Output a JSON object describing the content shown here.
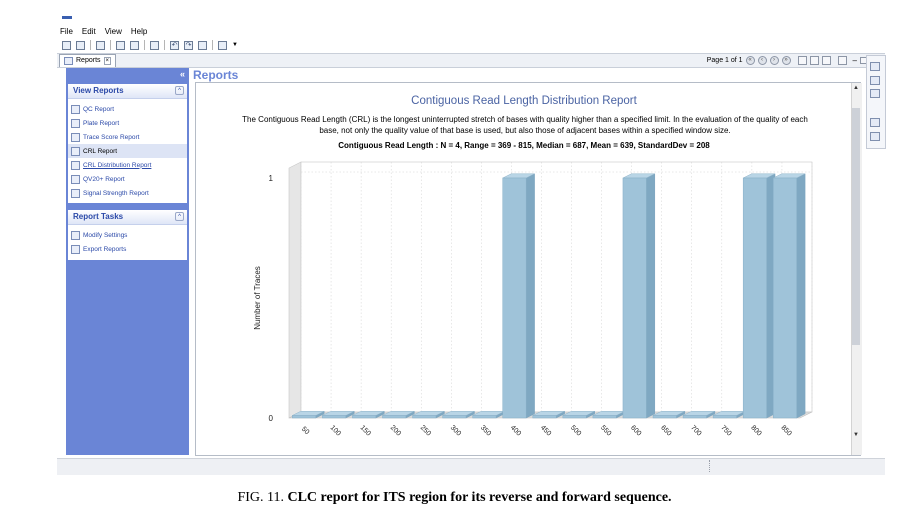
{
  "menu": [
    "File",
    "Edit",
    "View",
    "Help"
  ],
  "tab": {
    "label": "Reports"
  },
  "pager": {
    "text": "Page 1 of 1"
  },
  "sidebar": {
    "view_reports": {
      "title": "View Reports",
      "items": [
        "QC Report",
        "Plate Report",
        "Trace Score Report",
        "CRL Report",
        "CRL Distribution Report",
        "QV20+ Report",
        "Signal Strength Report"
      ]
    },
    "report_tasks": {
      "title": "Report Tasks",
      "items": [
        "Modify Settings",
        "Export Reports"
      ]
    }
  },
  "content": {
    "header": "Reports"
  },
  "chart_data": {
    "type": "bar",
    "title": "Contiguous Read Length Distribution Report",
    "description": "The Contiguous Read Length (CRL) is the longest uninterrupted stretch of bases with quality higher than a specified limit.   In the evaluation of the quality of each base, not only the quality value of that base is used, but also those of adjacent bases within a specified window size.",
    "stats": "Contiguous Read Length : N = 4,  Range = 369 - 815,  Median = 687,  Mean = 639,  StandardDev = 208",
    "ylabel": "Number of Traces",
    "xlabel": "",
    "ylim": [
      0,
      1
    ],
    "yticks": [
      "0",
      "1"
    ],
    "categories": [
      "50",
      "100",
      "150",
      "200",
      "250",
      "300",
      "350",
      "400",
      "450",
      "500",
      "550",
      "600",
      "650",
      "700",
      "750",
      "800",
      "850"
    ],
    "values": [
      0,
      0,
      0,
      0,
      0,
      0,
      0,
      1,
      0,
      0,
      0,
      1,
      0,
      0,
      0,
      1,
      1
    ],
    "bar_color": "#9fc3d9",
    "grid": true
  },
  "caption": {
    "label": "FIG. 11.",
    "text": "CLC report for ITS region for its reverse and forward sequence."
  }
}
